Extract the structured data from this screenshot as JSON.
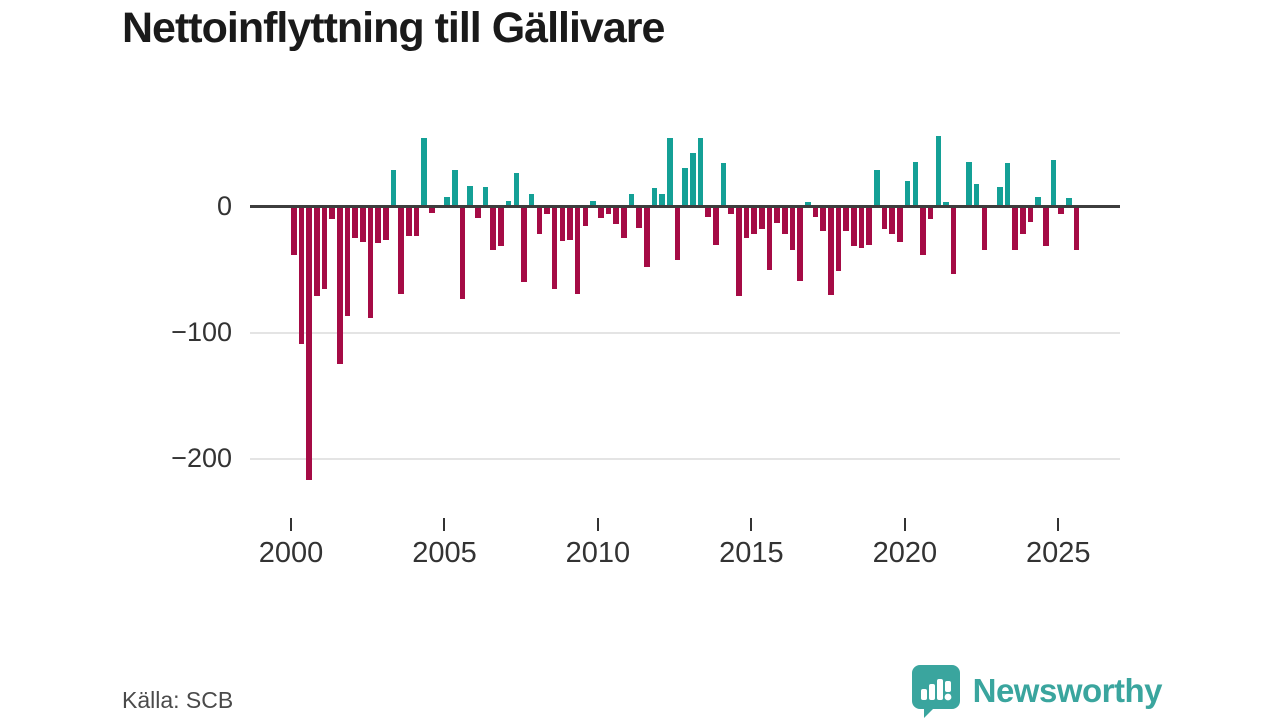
{
  "title": "Nettoinflyttning till Gällivare",
  "source": "Källa: SCB",
  "branding": {
    "logo_text": "Newsworthy",
    "logo_icon": "bar-chart-pin-icon",
    "logo_color": "#3aa59e"
  },
  "colors": {
    "positive_bar": "#14a096",
    "negative_bar": "#a50b45",
    "axis": "#3d3d3d",
    "gridline": "#e4e4e4",
    "text": "#333333"
  },
  "chart_data": {
    "type": "bar",
    "title": "Nettoinflyttning till Gällivare",
    "xlabel": "",
    "ylabel": "",
    "frequency": "quarterly",
    "start_period": "2000Q1",
    "end_period": "2025Q3",
    "ylim": [
      -225,
      62
    ],
    "y_ticks": [
      0,
      -100,
      -200
    ],
    "y_tick_labels": [
      "0",
      "−100",
      "−200"
    ],
    "x_tick_years": [
      2000,
      2005,
      2010,
      2015,
      2020,
      2025
    ],
    "x_tick_labels": [
      "2000",
      "2005",
      "2010",
      "2015",
      "2020",
      "2025"
    ],
    "grid": "horizontal",
    "legend": "none",
    "values": [
      -37,
      -108,
      -216,
      -70,
      -64,
      -9,
      -124,
      -86,
      -24,
      -27,
      -87,
      -28,
      -25,
      29,
      -68,
      -22,
      -22,
      55,
      -4,
      0,
      8,
      29,
      -72,
      17,
      -8,
      16,
      -33,
      -30,
      5,
      27,
      -59,
      10,
      -21,
      -5,
      -64,
      -26,
      -25,
      -68,
      -14,
      5,
      -8,
      -5,
      -13,
      -24,
      10,
      -16,
      -47,
      15,
      10,
      55,
      -41,
      31,
      43,
      55,
      -7,
      -29,
      35,
      -5,
      -70,
      -24,
      -21,
      -17,
      -49,
      -12,
      -21,
      -33,
      -58,
      4,
      -7,
      -18,
      -69,
      -50,
      -18,
      -30,
      -32,
      -29,
      29,
      -17,
      -21,
      -27,
      21,
      36,
      -37,
      -9,
      56,
      4,
      -52,
      0,
      36,
      18,
      -33,
      0,
      16,
      35,
      -33,
      -21,
      -11,
      8,
      -30,
      37,
      -5,
      7,
      -33
    ]
  }
}
